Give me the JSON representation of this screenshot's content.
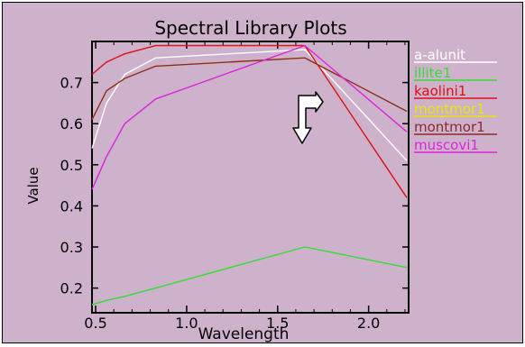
{
  "window": {
    "background": "#ceb2cc"
  },
  "chart_data": {
    "type": "line",
    "title": "Spectral Library Plots",
    "xlabel": "Wavelength",
    "ylabel": "Value",
    "xlim": [
      0.48,
      2.22
    ],
    "ylim": [
      0.14,
      0.8
    ],
    "x_ticks": [
      0.5,
      1.0,
      1.5,
      2.0
    ],
    "x_tick_labels": [
      "0.5",
      "1.0",
      "1.5",
      "2.0"
    ],
    "y_ticks": [
      0.2,
      0.3,
      0.4,
      0.5,
      0.6,
      0.7
    ],
    "y_tick_labels": [
      "0.2",
      "0.3",
      "0.4",
      "0.5",
      "0.6",
      "0.7"
    ],
    "grid": false,
    "legend_position": "right, outside plot",
    "series": [
      {
        "name": "a-alunit",
        "color": "#ffffff",
        "x": [
          0.48,
          0.56,
          0.66,
          0.83,
          1.65,
          2.21
        ],
        "y": [
          0.54,
          0.65,
          0.72,
          0.76,
          0.78,
          0.51
        ]
      },
      {
        "name": "illite1",
        "color": "#33dd33",
        "x": [
          0.48,
          0.56,
          0.66,
          0.83,
          1.65,
          2.21
        ],
        "y": [
          0.16,
          0.17,
          0.18,
          0.2,
          0.3,
          0.25
        ]
      },
      {
        "name": "kaolini1",
        "color": "#dd1111",
        "x": [
          0.48,
          0.56,
          0.66,
          0.83,
          1.65,
          2.21
        ],
        "y": [
          0.72,
          0.75,
          0.77,
          0.79,
          0.79,
          0.42
        ]
      },
      {
        "name": "montmor1",
        "color": "#e8e800",
        "x": [
          0.48,
          0.56,
          0.66,
          0.83,
          1.65,
          2.21
        ],
        "y": [
          0.61,
          0.68,
          0.71,
          0.74,
          0.76,
          0.63
        ]
      },
      {
        "name": "montmor1",
        "color": "#8a2a2a",
        "x": [
          0.48,
          0.56,
          0.66,
          0.83,
          1.65,
          2.21
        ],
        "y": [
          0.61,
          0.68,
          0.71,
          0.74,
          0.76,
          0.63
        ]
      },
      {
        "name": "muscovi1",
        "color": "#dd22dd",
        "x": [
          0.48,
          0.56,
          0.66,
          0.83,
          1.65,
          2.21
        ],
        "y": [
          0.44,
          0.52,
          0.6,
          0.66,
          0.79,
          0.58
        ]
      }
    ]
  }
}
